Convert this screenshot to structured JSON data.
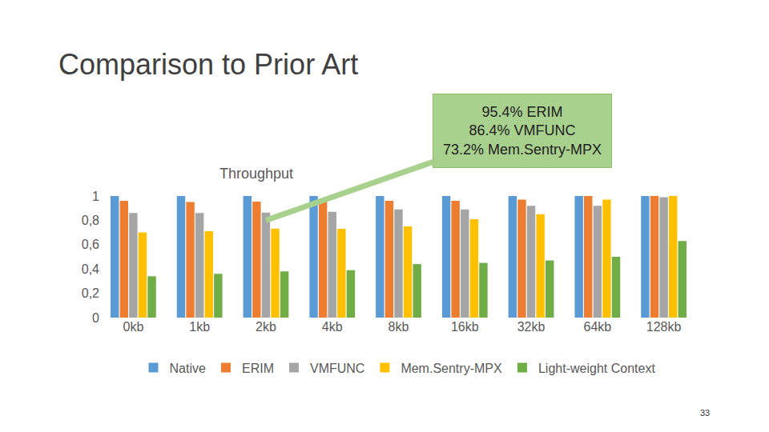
{
  "chart_data": {
    "type": "bar",
    "title": "Comparison to Prior Art",
    "subtitle": "Throughput",
    "categories": [
      "0kb",
      "1kb",
      "2kb",
      "4kb",
      "8kb",
      "16kb",
      "32kb",
      "64kb",
      "128kb"
    ],
    "series": [
      {
        "name": "Native",
        "color": "#5b9bd5",
        "values": [
          1,
          1,
          1,
          1,
          1,
          1,
          1,
          1,
          1
        ]
      },
      {
        "name": "ERIM",
        "color": "#ed7d31",
        "values": [
          0.96,
          0.95,
          0.954,
          0.955,
          0.96,
          0.96,
          0.97,
          1.0,
          1.0
        ]
      },
      {
        "name": "VMFUNC",
        "color": "#a5a5a5",
        "values": [
          0.86,
          0.86,
          0.864,
          0.87,
          0.89,
          0.89,
          0.92,
          0.92,
          0.99
        ]
      },
      {
        "name": "Mem.Sentry-MPX",
        "color": "#ffc000",
        "values": [
          0.7,
          0.71,
          0.732,
          0.73,
          0.75,
          0.81,
          0.85,
          0.97,
          1.0
        ]
      },
      {
        "name": "Light-weight Context",
        "color": "#70ad47",
        "values": [
          0.34,
          0.36,
          0.38,
          0.39,
          0.44,
          0.45,
          0.47,
          0.5,
          0.63
        ]
      }
    ],
    "ylim": [
      0,
      1
    ],
    "yticks": [
      0,
      {
        "value": 0.2,
        "label": "0,2"
      },
      {
        "value": 0.4,
        "label": "0,4"
      },
      {
        "value": 0.6,
        "label": "0,6"
      },
      {
        "value": 0.8,
        "label": "0,8"
      },
      1
    ],
    "grid": false,
    "legend": "bottom",
    "annotations": [
      {
        "text": [
          "95.4% ERIM",
          "86.4% VMFUNC",
          "73.2% Mem.Sentry-MPX"
        ],
        "category": "2kb"
      }
    ],
    "page_number": "33"
  }
}
